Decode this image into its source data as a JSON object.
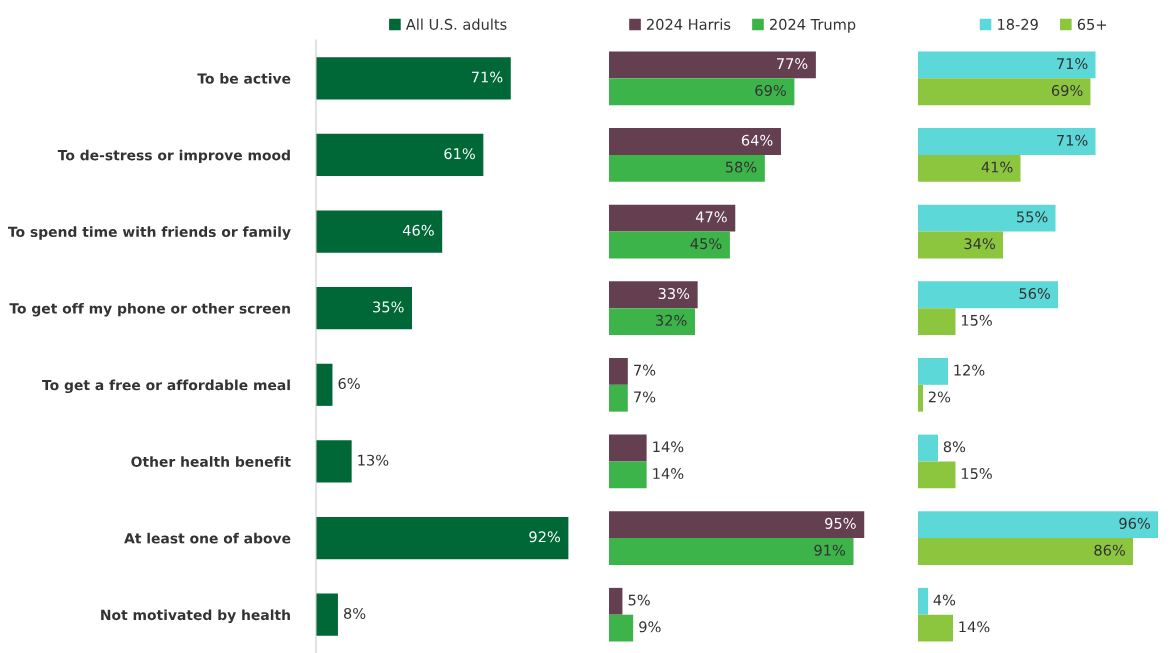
{
  "chart_data": [
    {
      "type": "bar",
      "orientation": "horizontal",
      "categories": [
        "To be active",
        "To de-stress or improve mood",
        "To spend time with friends or family",
        "To get off my phone or other screen",
        "To get a free or affordable meal",
        "Other health benefit",
        "At least one of above",
        "Not motivated by health"
      ],
      "series": [
        {
          "name": "All U.S. adults",
          "color": "#006837",
          "values": [
            71,
            61,
            46,
            35,
            6,
            13,
            92,
            8
          ],
          "value_labels": [
            "71%",
            "61%",
            "46%",
            "35%",
            "6%",
            "13%",
            "92%",
            "8%"
          ]
        }
      ],
      "legend": "top",
      "tick_labels": "y"
    },
    {
      "type": "bar",
      "orientation": "horizontal",
      "series": [
        {
          "name": "2024 Harris",
          "color": "#643f4f",
          "values": [
            77,
            64,
            47,
            33,
            7,
            14,
            95,
            5
          ],
          "value_labels": [
            "77%",
            "64%",
            "47%",
            "33%",
            "7%",
            "14%",
            "95%",
            "5%"
          ]
        },
        {
          "name": "2024 Trump",
          "color": "#3cb44a",
          "values": [
            69,
            58,
            45,
            32,
            7,
            14,
            91,
            9
          ],
          "value_labels": [
            "69%",
            "58%",
            "45%",
            "32%",
            "7%",
            "14%",
            "91%",
            "9%"
          ]
        }
      ],
      "legend": "top",
      "tick_labels": false
    },
    {
      "type": "bar",
      "orientation": "horizontal",
      "series": [
        {
          "name": "18-29",
          "color": "#5cd8d8",
          "values": [
            71,
            71,
            55,
            56,
            12,
            8,
            96,
            4
          ],
          "value_labels": [
            "71%",
            "71%",
            "55%",
            "56%",
            "12%",
            "8%",
            "96%",
            "4%"
          ]
        },
        {
          "name": "65+",
          "color": "#8cc63f",
          "values": [
            69,
            41,
            34,
            15,
            2,
            15,
            86,
            14
          ],
          "value_labels": [
            "69%",
            "41%",
            "34%",
            "15%",
            "2%",
            "15%",
            "86%",
            "14%"
          ]
        }
      ],
      "legend": "top",
      "tick_labels": false
    }
  ]
}
